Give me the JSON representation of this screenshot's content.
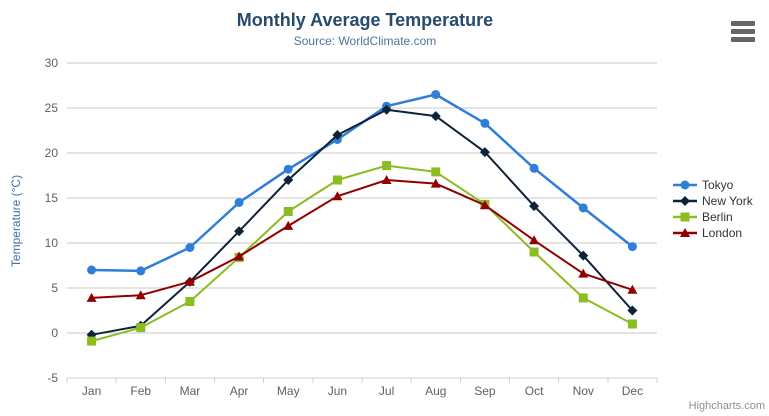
{
  "header": {
    "title": "Monthly Average Temperature",
    "subtitle": "Source: WorldClimate.com"
  },
  "menu": {
    "icon": "hamburger-icon",
    "color": "#666666"
  },
  "credits": "Highcharts.com",
  "chart_data": {
    "type": "line",
    "title": "Monthly Average Temperature",
    "subtitle": "Source: WorldClimate.com",
    "categories": [
      "Jan",
      "Feb",
      "Mar",
      "Apr",
      "May",
      "Jun",
      "Jul",
      "Aug",
      "Sep",
      "Oct",
      "Nov",
      "Dec"
    ],
    "series": [
      {
        "name": "Tokyo",
        "color": "#2f7ed8",
        "marker": "circle",
        "line_width": 2.5,
        "values": [
          7.0,
          6.9,
          9.5,
          14.5,
          18.2,
          21.5,
          25.2,
          26.5,
          23.3,
          18.3,
          13.9,
          9.6
        ]
      },
      {
        "name": "New York",
        "color": "#0d233a",
        "marker": "diamond",
        "line_width": 2,
        "values": [
          -0.2,
          0.8,
          5.7,
          11.3,
          17.0,
          22.0,
          24.8,
          24.1,
          20.1,
          14.1,
          8.6,
          2.5
        ]
      },
      {
        "name": "Berlin",
        "color": "#8bbc21",
        "marker": "square",
        "line_width": 2,
        "values": [
          -0.9,
          0.6,
          3.5,
          8.4,
          13.5,
          17.0,
          18.6,
          17.9,
          14.3,
          9.0,
          3.9,
          1.0
        ]
      },
      {
        "name": "London",
        "color": "#910000",
        "marker": "triangle",
        "line_width": 2,
        "values": [
          3.9,
          4.2,
          5.7,
          8.5,
          11.9,
          15.2,
          17.0,
          16.6,
          14.2,
          10.3,
          6.6,
          4.8
        ]
      }
    ],
    "xlabel": "",
    "ylabel": "Temperature (°C)",
    "ylim": [
      -5,
      30
    ],
    "ytick_step": 5,
    "yticks": [
      -5,
      0,
      5,
      10,
      15,
      20,
      25,
      30
    ],
    "grid": true,
    "legend_position": "right"
  },
  "colors": {
    "title": "#274b6d",
    "subtitle": "#4d759e",
    "axis_labels": "#606060",
    "y_axis_title": "#4572a7",
    "gridline": "#c8c8c8",
    "axis_line": "#c0d0e0",
    "legend_text": "#333333",
    "credits_text": "#909090",
    "background": "#ffffff"
  }
}
